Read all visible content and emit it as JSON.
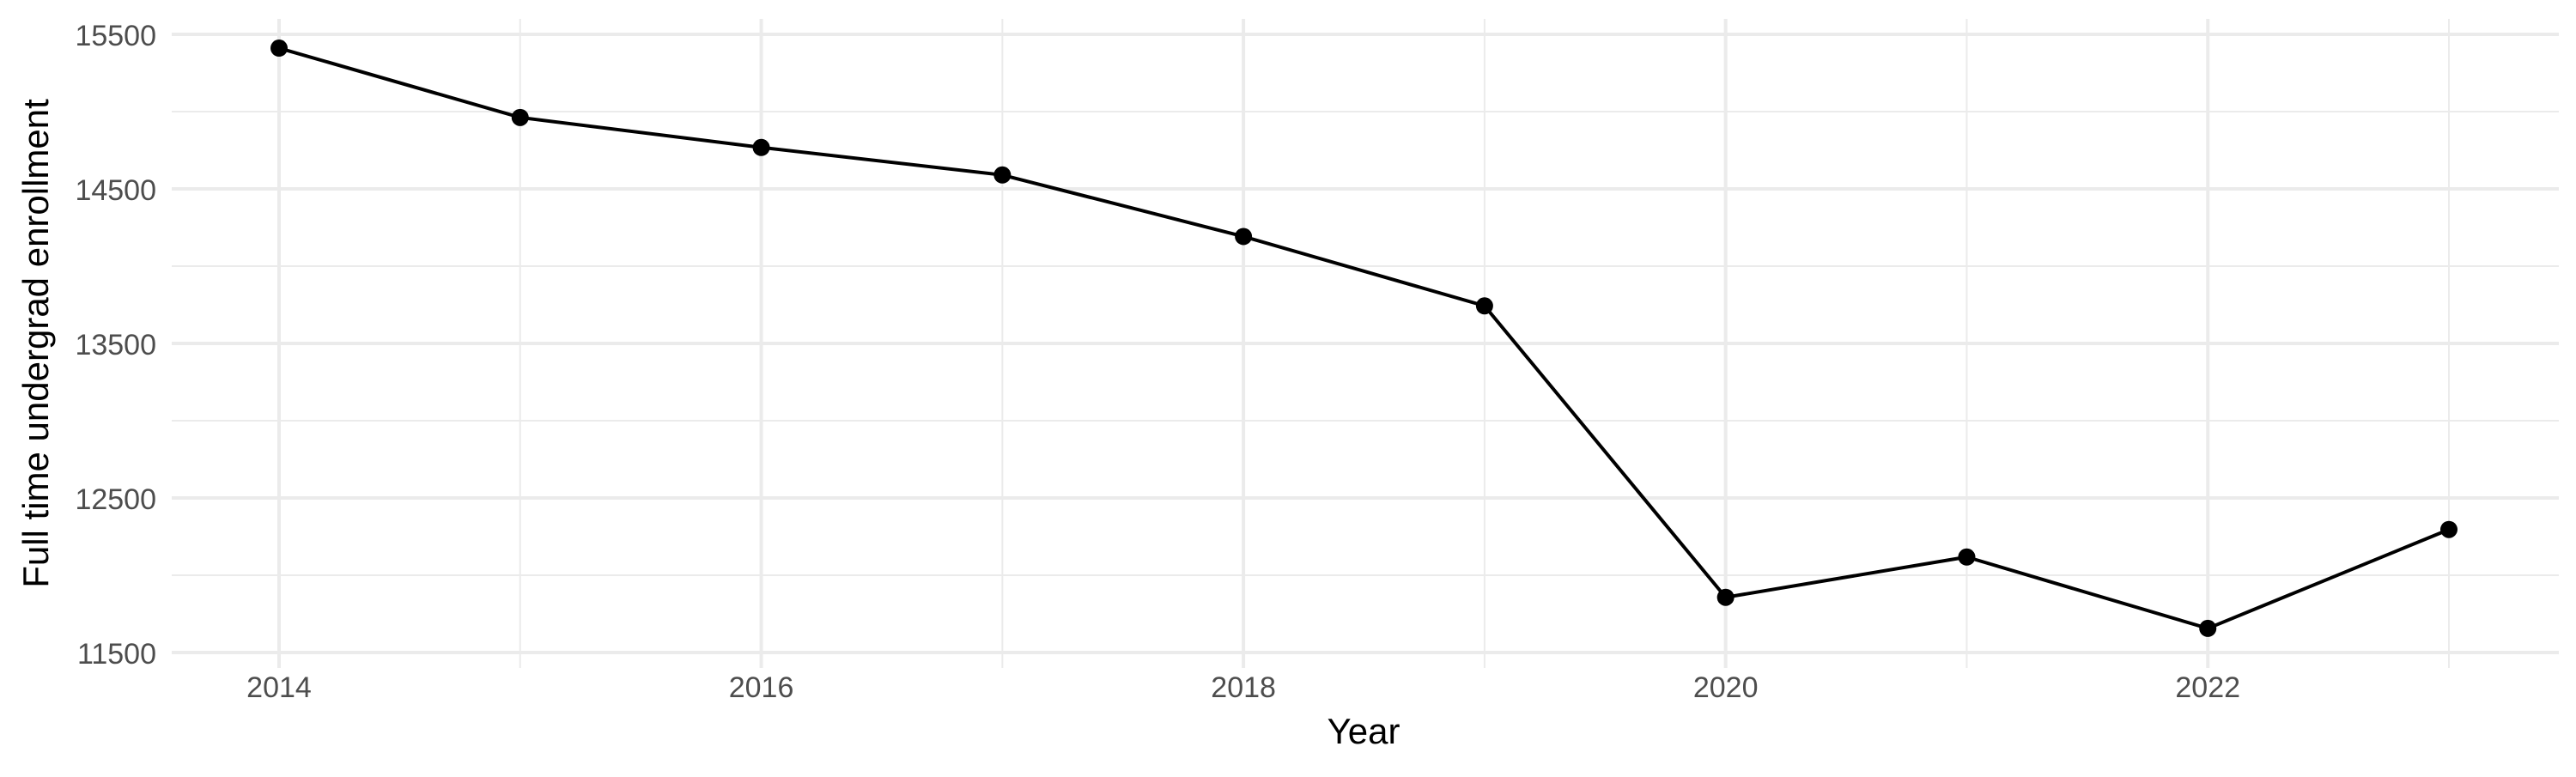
{
  "chart_data": {
    "type": "line",
    "title": "",
    "xlabel": "Year",
    "ylabel": "Full time undergrad enrollment",
    "x": [
      2014,
      2015,
      2016,
      2017,
      2018,
      2019,
      2020,
      2021,
      2022,
      2023
    ],
    "values": [
      15411,
      14962,
      14768,
      14590,
      14192,
      13743,
      11857,
      12118,
      11656,
      12296
    ],
    "xlim": [
      2013.55,
      2023.45
    ],
    "ylim": [
      11500,
      15500
    ],
    "x_ticks": [
      "2014",
      "2016",
      "2018",
      "2020",
      "2022"
    ],
    "y_ticks": [
      "11500",
      "12500",
      "13500",
      "14500",
      "15500"
    ],
    "grid": true,
    "line_color": "#000000",
    "grid_color": "#ebebeb",
    "tick_label_color": "#4d4d4d"
  }
}
